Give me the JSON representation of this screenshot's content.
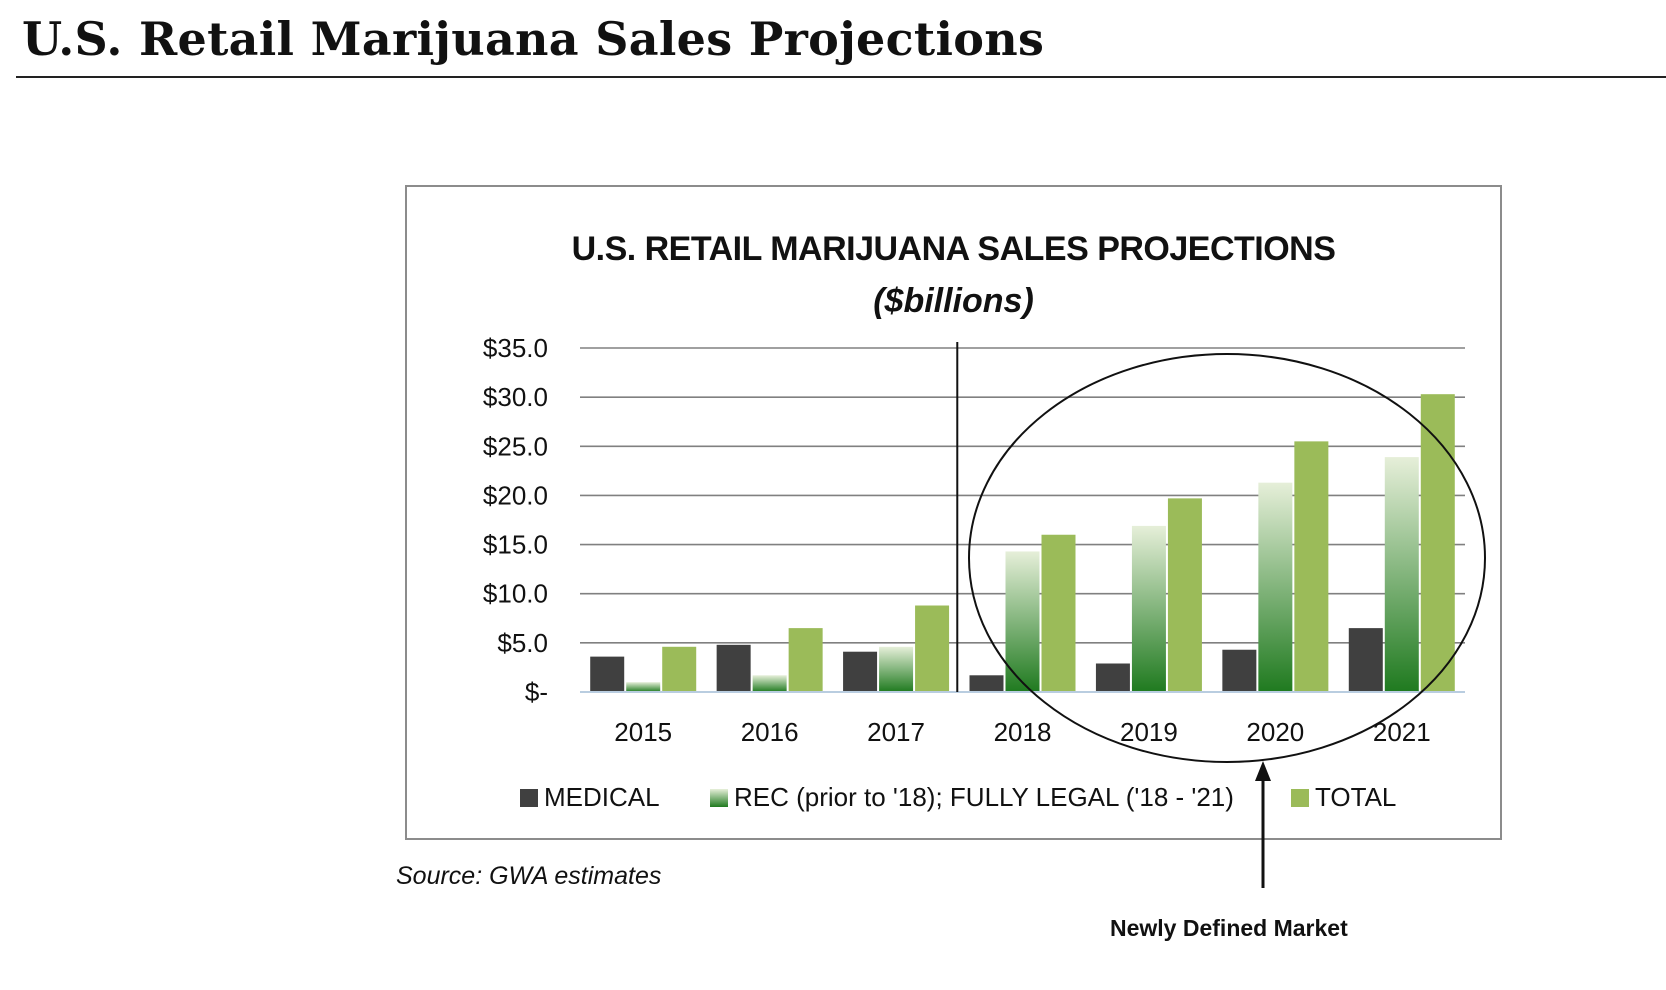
{
  "page": {
    "title": "U.S. Retail Marijuana Sales Projections",
    "source": "Source: GWA estimates",
    "callout": "Newly Defined Market"
  },
  "colors": {
    "medical": "#404040",
    "rec_top": "#e6efd9",
    "rec_bottom": "#1f7a1f",
    "total": "#9bbb59",
    "grid": "#808080"
  },
  "chart_data": {
    "type": "bar",
    "title": "U.S. RETAIL MARIJUANA SALES PROJECTIONS",
    "subtitle": "($billions)",
    "xlabel": "",
    "ylabel": "",
    "categories": [
      "2015",
      "2016",
      "2017",
      "2018",
      "2019",
      "2020",
      "2021"
    ],
    "ylim": [
      0,
      35
    ],
    "yticks": [
      0,
      5,
      10,
      15,
      20,
      25,
      30,
      35
    ],
    "ytick_labels": [
      "$-",
      "$5.0",
      "$10.0",
      "$15.0",
      "$20.0",
      "$25.0",
      "$30.0",
      "$35.0"
    ],
    "grid": true,
    "legend": "bottom",
    "series": [
      {
        "name": "MEDICAL",
        "values": [
          3.6,
          4.8,
          4.1,
          1.7,
          2.9,
          4.3,
          6.5
        ]
      },
      {
        "name": "REC (prior to '18); FULLY LEGAL ('18 - '21)",
        "values": [
          1.0,
          1.7,
          4.6,
          14.3,
          16.9,
          21.3,
          23.9
        ]
      },
      {
        "name": "TOTAL",
        "values": [
          4.6,
          6.5,
          8.8,
          16.0,
          19.7,
          25.5,
          30.3
        ]
      }
    ],
    "annotation": "Newly Defined Market"
  }
}
